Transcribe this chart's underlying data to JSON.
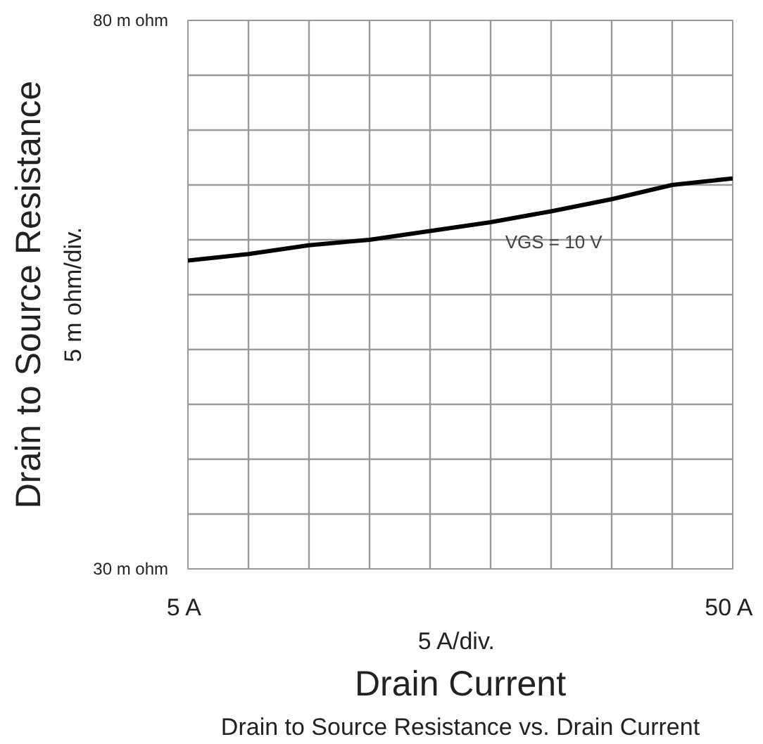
{
  "chart_data": {
    "type": "line",
    "title": "Drain to Source Resistance vs. Drain Current",
    "xlabel": "Drain Current",
    "ylabel": "Drain to Source Resistance",
    "annotations": [
      "5 m ohm/div.",
      "5  A/div."
    ],
    "x": [
      5,
      10,
      15,
      20,
      25,
      30,
      35,
      40,
      45,
      50
    ],
    "series": [
      {
        "name": "VGS = 10 V",
        "color": "#000000",
        "values": [
          58.1,
          58.7,
          59.5,
          60.0,
          60.8,
          61.6,
          62.6,
          63.7,
          65.0,
          65.6
        ]
      }
    ],
    "xlim": [
      5,
      50
    ],
    "ylim": [
      30,
      80
    ],
    "xticks": [
      {
        "value": 5,
        "label": "5  A"
      },
      {
        "value": 10,
        "label": null
      },
      {
        "value": 15,
        "label": null
      },
      {
        "value": 20,
        "label": null
      },
      {
        "value": 25,
        "label": null
      },
      {
        "value": 30,
        "label": null
      },
      {
        "value": 35,
        "label": null
      },
      {
        "value": 40,
        "label": null
      },
      {
        "value": 45,
        "label": null
      },
      {
        "value": 50,
        "label": "50  A"
      }
    ],
    "yticks": [
      {
        "value": 30,
        "label": "30 m ohm"
      },
      {
        "value": 35,
        "label": null
      },
      {
        "value": 40,
        "label": null
      },
      {
        "value": 45,
        "label": null
      },
      {
        "value": 50,
        "label": null
      },
      {
        "value": 55,
        "label": null
      },
      {
        "value": 60,
        "label": null
      },
      {
        "value": 65,
        "label": null
      },
      {
        "value": 70,
        "label": null
      },
      {
        "value": 75,
        "label": null
      },
      {
        "value": 80,
        "label": "80 m ohm"
      }
    ],
    "grid": true,
    "legend": false,
    "marker": "none",
    "line_style": "solid"
  }
}
